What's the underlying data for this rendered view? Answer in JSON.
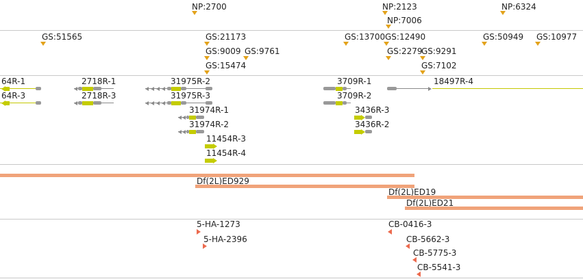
{
  "np_track": {
    "features": [
      {
        "label": "NP:2700"
      },
      {
        "label": "NP:2123"
      },
      {
        "label": "NP:7006"
      },
      {
        "label": "NP:6324"
      }
    ]
  },
  "gs_track": {
    "features": [
      {
        "label": "GS:51565"
      },
      {
        "label": "GS:21173"
      },
      {
        "label": "GS:9009"
      },
      {
        "label": "GS:9761"
      },
      {
        "label": "GS:15474"
      },
      {
        "label": "GS:13700"
      },
      {
        "label": "GS:12490"
      },
      {
        "label": "GS:2279"
      },
      {
        "label": "GS:9291"
      },
      {
        "label": "GS:7102"
      },
      {
        "label": "GS:50949"
      },
      {
        "label": "GS:10977"
      }
    ]
  },
  "transcript_track": {
    "features": [
      {
        "label": "64R-1"
      },
      {
        "label": "64R-3"
      },
      {
        "label": "2718R-1"
      },
      {
        "label": "2718R-3"
      },
      {
        "label": "31975R-2"
      },
      {
        "label": "31975R-3"
      },
      {
        "label": "31974R-1"
      },
      {
        "label": "31974R-2"
      },
      {
        "label": "11454R-3"
      },
      {
        "label": "11454R-4"
      },
      {
        "label": "3709R-1"
      },
      {
        "label": "3709R-2"
      },
      {
        "label": "3436R-3"
      },
      {
        "label": "3436R-2"
      },
      {
        "label": "18497R-4"
      }
    ]
  },
  "deficiency_track": {
    "features": [
      {
        "label": "Df(2L)ED929"
      },
      {
        "label": "Df(2L)ED19"
      },
      {
        "label": "Df(2L)ED21"
      }
    ]
  },
  "insertion_track": {
    "features": [
      {
        "label": "5-HA-1273"
      },
      {
        "label": "5-HA-2396"
      },
      {
        "label": "CB-0416-3"
      },
      {
        "label": "CB-5662-3"
      },
      {
        "label": "CB-5775-3"
      },
      {
        "label": "CB-5541-3"
      }
    ]
  },
  "colors": {
    "marker_orange": "#e3a21a",
    "insertion_red": "#ec6a4e",
    "deficiency_bar": "#f0a37a",
    "transcript_yellow": "#c4cc00",
    "transcript_grey": "#999999"
  }
}
